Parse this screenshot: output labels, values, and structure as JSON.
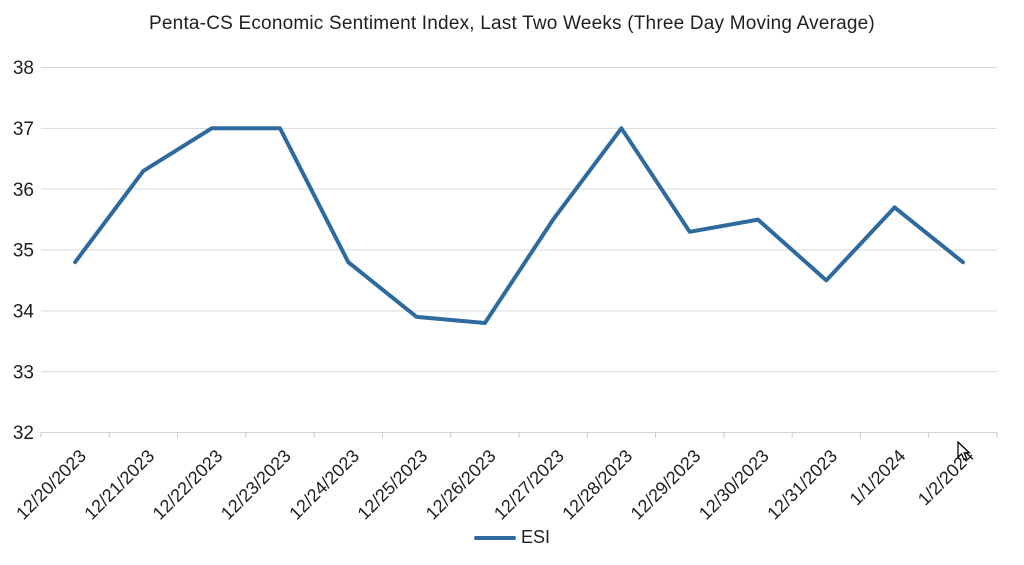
{
  "title": "Penta-CS Economic Sentiment Index, Last Two Weeks (Three Day Moving Average)",
  "legend": {
    "label": "ESI"
  },
  "colors": {
    "series_line": "#2e6a9e",
    "gridline": "#d9d9d9",
    "axis_line": "#d3d3d3",
    "tick": "#c6c6c6",
    "text": "#1f1f1f",
    "background": "#ffffff"
  },
  "chart_data": {
    "type": "line",
    "title": "Penta-CS Economic Sentiment Index, Last Two Weeks (Three Day Moving Average)",
    "categories": [
      "12/20/2023",
      "12/21/2023",
      "12/22/2023",
      "12/23/2023",
      "12/24/2023",
      "12/25/2023",
      "12/26/2023",
      "12/27/2023",
      "12/28/2023",
      "12/29/2023",
      "12/30/2023",
      "12/31/2023",
      "1/1/2024",
      "1/2/2024"
    ],
    "series": [
      {
        "name": "ESI",
        "values": [
          34.8,
          36.3,
          37.0,
          37.0,
          34.8,
          33.9,
          33.8,
          35.5,
          37.0,
          35.3,
          35.5,
          34.5,
          35.7,
          34.8
        ],
        "color": "#2e6a9e"
      }
    ],
    "xlabel": "",
    "ylabel": "",
    "ylim": [
      32,
      38
    ],
    "yticks": [
      32,
      33,
      34,
      35,
      36,
      37,
      38
    ],
    "grid": true,
    "legend_position": "bottom",
    "x_label_rotation_deg": -45
  }
}
